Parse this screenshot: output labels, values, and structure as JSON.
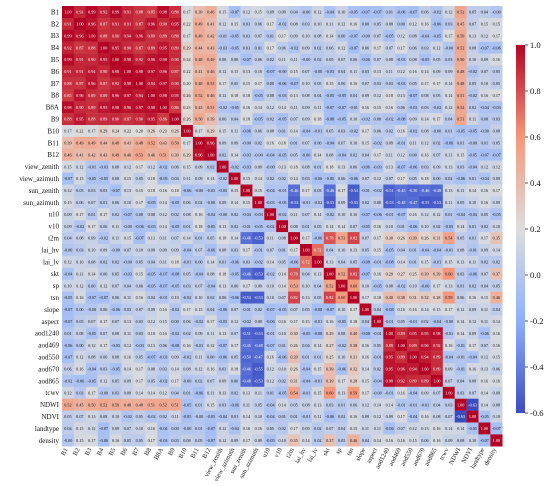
{
  "chart_data": {
    "type": "heatmap",
    "labels": [
      "B1",
      "B2",
      "B3",
      "B4",
      "B5",
      "B6",
      "B7",
      "B8",
      "B8A",
      "B9",
      "B10",
      "B11",
      "B12",
      "view_zenith",
      "view_azimuth",
      "sun_zenith",
      "sun_azimuth",
      "u10",
      "v10",
      "t2m",
      "lai_hv",
      "lai_lv",
      "skt",
      "sp",
      "tsn",
      "slope",
      "aspect",
      "aod1240",
      "aod469",
      "aod550",
      "aod670",
      "aod865",
      "tcwv",
      "NDWI",
      "NDVI",
      "landtype",
      "density"
    ],
    "groups": {
      "bands_vis": [
        0,
        1,
        2,
        3,
        4,
        5,
        6,
        7,
        8,
        9
      ],
      "bands_swir": [
        11,
        12
      ],
      "band10": [
        10
      ],
      "view": [
        13,
        14
      ],
      "sun": [
        15,
        16
      ],
      "wind": [
        17,
        18
      ],
      "thermal": [
        19,
        22,
        24
      ],
      "veg": [
        20,
        21
      ],
      "sp": [
        23
      ],
      "topo": [
        25,
        26
      ],
      "aod": [
        27,
        28,
        29,
        30,
        31
      ],
      "tcwv": [
        32
      ],
      "ndwi": [
        33
      ],
      "ndvi": [
        34
      ],
      "landtype": [
        35
      ],
      "density": [
        36
      ]
    },
    "colorscale": {
      "min": -0.6,
      "max": 1.0,
      "ticks": [
        1.0,
        0.8,
        0.6,
        0.4,
        0.2,
        0.0,
        -0.2,
        -0.4,
        -0.6
      ],
      "colors": [
        "#3b4cc0",
        "#8db0fe",
        "#dddddd",
        "#f4987a",
        "#b40426"
      ]
    },
    "grid": false,
    "legend": "colorbar-right"
  }
}
